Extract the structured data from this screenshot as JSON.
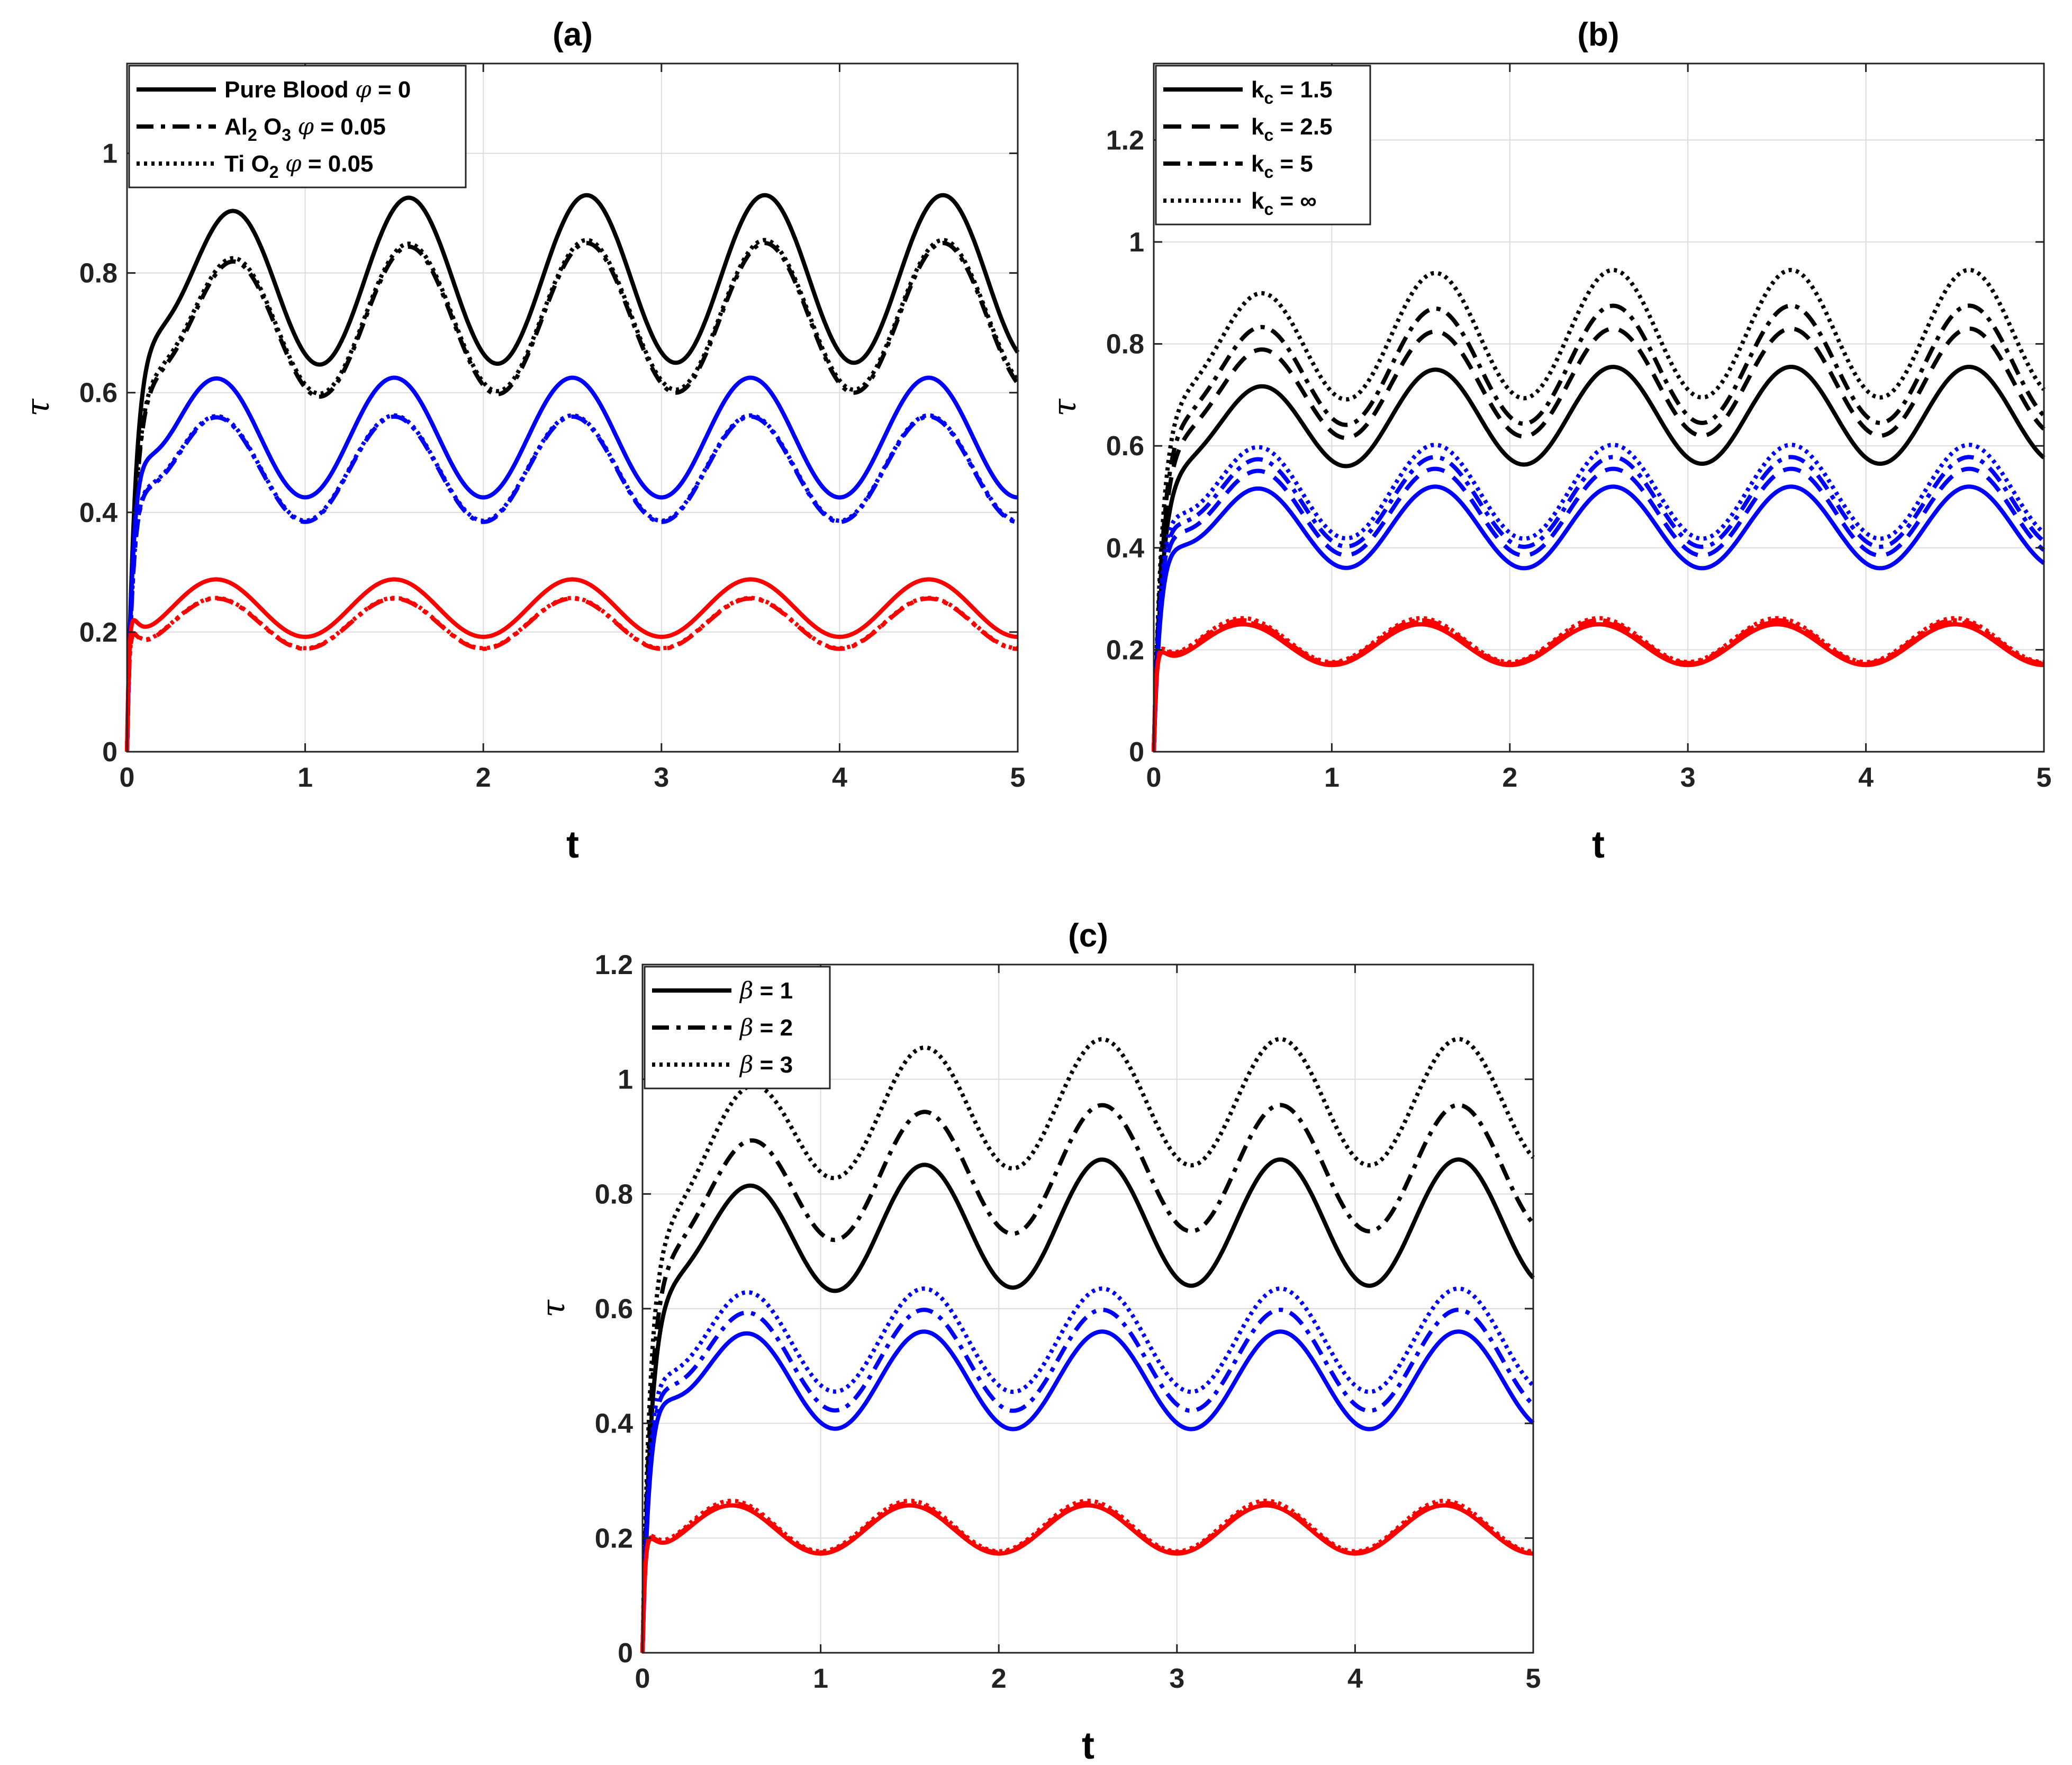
{
  "chart_data": [
    {
      "id": "a",
      "type": "line",
      "title": "(a)",
      "xlabel": "t",
      "ylabel": "τ",
      "xlim": [
        0,
        5
      ],
      "ylim": [
        0,
        1.15
      ],
      "xticks": [
        0,
        1,
        2,
        3,
        4,
        5
      ],
      "yticks": [
        0,
        0.2,
        0.4,
        0.6,
        0.8,
        1
      ],
      "grid": true,
      "legend_position": "top-left",
      "legend": [
        {
          "dash": "solid",
          "parts": [
            [
              "Pure Blood ",
              "n"
            ],
            [
              "φ",
              "i"
            ],
            [
              " = 0",
              "n"
            ]
          ]
        },
        {
          "dash": "dashdot",
          "parts": [
            [
              "Al",
              "n"
            ],
            [
              "2",
              "sub"
            ],
            [
              " O",
              "n"
            ],
            [
              "3",
              "sub"
            ],
            [
              " ",
              "n"
            ],
            [
              "φ",
              "i"
            ],
            [
              " = 0.05",
              "n"
            ]
          ]
        },
        {
          "dash": "dotted",
          "parts": [
            [
              "Ti O",
              "n"
            ],
            [
              "2",
              "sub"
            ],
            [
              " ",
              "n"
            ],
            [
              "φ",
              "i"
            ],
            [
              " = 0.05",
              "n"
            ]
          ]
        }
      ],
      "series": [
        {
          "name": "Pure Blood φ = 0 (black)",
          "color": "#000000",
          "dash": "solid",
          "mean": 0.78,
          "amp": 0.14,
          "peak0": 0.77,
          "tpeak": 0.2,
          "trise": 0.045,
          "drift": 0.01
        },
        {
          "name": "Al2 O3 φ = 0.05 (black)",
          "color": "#000000",
          "dash": "dashdot",
          "mean": 0.71,
          "amp": 0.125,
          "peak0": 0.68,
          "tpeak": 0.2,
          "trise": 0.045,
          "drift": 0.015
        },
        {
          "name": "Ti O2 φ = 0.05 (black)",
          "color": "#000000",
          "dash": "dotted",
          "mean": 0.715,
          "amp": 0.125,
          "peak0": 0.69,
          "tpeak": 0.2,
          "trise": 0.045,
          "drift": 0.015
        },
        {
          "name": "Pure Blood φ = 0 (blue)",
          "color": "#0000ff",
          "dash": "solid",
          "mean": 0.525,
          "amp": 0.1,
          "peak0": 0.58,
          "tpeak": 0.1,
          "trise": 0.03,
          "drift": 0
        },
        {
          "name": "Al2 O3 φ = 0.05 (blue)",
          "color": "#0000ff",
          "dash": "dashdot",
          "mean": 0.472,
          "amp": 0.088,
          "peak0": 0.515,
          "tpeak": 0.1,
          "trise": 0.03,
          "drift": 0
        },
        {
          "name": "Ti O2 φ = 0.05 (blue)",
          "color": "#0000ff",
          "dash": "dotted",
          "mean": 0.474,
          "amp": 0.088,
          "peak0": 0.52,
          "tpeak": 0.1,
          "trise": 0.03,
          "drift": 0
        },
        {
          "name": "Pure Blood φ = 0 (red)",
          "color": "#ff0000",
          "dash": "solid",
          "mean": 0.24,
          "amp": 0.048,
          "peak0": 0.285,
          "tpeak": 0.03,
          "trise": 0.01,
          "drift": 0
        },
        {
          "name": "Al2 O3 φ = 0.05 (red)",
          "color": "#ff0000",
          "dash": "dashdot",
          "mean": 0.214,
          "amp": 0.042,
          "peak0": 0.253,
          "tpeak": 0.03,
          "trise": 0.01,
          "drift": 0
        },
        {
          "name": "Ti O2 φ = 0.05 (red)",
          "color": "#ff0000",
          "dash": "dotted",
          "mean": 0.215,
          "amp": 0.042,
          "peak0": 0.255,
          "tpeak": 0.03,
          "trise": 0.01,
          "drift": 0
        }
      ]
    },
    {
      "id": "b",
      "type": "line",
      "title": "(b)",
      "xlabel": "t",
      "ylabel": "τ",
      "xlim": [
        0,
        5
      ],
      "ylim": [
        0,
        1.35
      ],
      "xticks": [
        0,
        1,
        2,
        3,
        4,
        5
      ],
      "yticks": [
        0,
        0.2,
        0.4,
        0.6,
        0.8,
        1,
        1.2
      ],
      "grid": true,
      "legend_position": "top-left",
      "legend": [
        {
          "dash": "solid",
          "parts": [
            [
              "k",
              "n"
            ],
            [
              "c",
              "sub"
            ],
            [
              " = 1.5",
              "n"
            ]
          ]
        },
        {
          "dash": "dashed",
          "parts": [
            [
              "k",
              "n"
            ],
            [
              "c",
              "sub"
            ],
            [
              " = 2.5",
              "n"
            ]
          ]
        },
        {
          "dash": "dashdot",
          "parts": [
            [
              "k",
              "n"
            ],
            [
              "c",
              "sub"
            ],
            [
              " = 5",
              "n"
            ]
          ]
        },
        {
          "dash": "dotted",
          "parts": [
            [
              "k",
              "n"
            ],
            [
              "c",
              "sub"
            ],
            [
              " = ∞",
              "n"
            ]
          ]
        }
      ],
      "series": [
        {
          "name": "k_c = 1.5 (black)",
          "color": "#000000",
          "dash": "solid",
          "mean": 0.65,
          "amp": 0.095,
          "peak0": 0.58,
          "tpeak": 0.25,
          "trise": 0.05,
          "drift": 0.01
        },
        {
          "name": "k_c = 2.5 (black)",
          "color": "#000000",
          "dash": "dashed",
          "mean": 0.715,
          "amp": 0.105,
          "peak0": 0.64,
          "tpeak": 0.25,
          "trise": 0.05,
          "drift": 0.01
        },
        {
          "name": "k_c = 5 (black)",
          "color": "#000000",
          "dash": "dashdot",
          "mean": 0.75,
          "amp": 0.115,
          "peak0": 0.68,
          "tpeak": 0.25,
          "trise": 0.05,
          "drift": 0.01
        },
        {
          "name": "k_c = ∞ (black)",
          "color": "#000000",
          "dash": "dotted",
          "mean": 0.81,
          "amp": 0.125,
          "peak0": 0.73,
          "tpeak": 0.25,
          "trise": 0.05,
          "drift": 0.01
        },
        {
          "name": "k_c = 1.5 (blue)",
          "color": "#0000ff",
          "dash": "solid",
          "mean": 0.44,
          "amp": 0.08,
          "peak0": 0.46,
          "tpeak": 0.15,
          "trise": 0.035,
          "drift": 0
        },
        {
          "name": "k_c = 2.5 (blue)",
          "color": "#0000ff",
          "dash": "dashed",
          "mean": 0.47,
          "amp": 0.085,
          "peak0": 0.49,
          "tpeak": 0.15,
          "trise": 0.035,
          "drift": 0
        },
        {
          "name": "k_c = 5 (blue)",
          "color": "#0000ff",
          "dash": "dashdot",
          "mean": 0.49,
          "amp": 0.088,
          "peak0": 0.51,
          "tpeak": 0.15,
          "trise": 0.035,
          "drift": 0
        },
        {
          "name": "k_c = ∞ (blue)",
          "color": "#0000ff",
          "dash": "dotted",
          "mean": 0.51,
          "amp": 0.092,
          "peak0": 0.53,
          "tpeak": 0.15,
          "trise": 0.035,
          "drift": 0
        },
        {
          "name": "k_c = 1.5 (red)",
          "color": "#ff0000",
          "dash": "solid",
          "mean": 0.21,
          "amp": 0.04,
          "peak0": 0.245,
          "tpeak": 0.04,
          "trise": 0.012,
          "drift": 0
        },
        {
          "name": "k_c = 2.5 (red)",
          "color": "#ff0000",
          "dash": "dashed",
          "mean": 0.213,
          "amp": 0.041,
          "peak0": 0.248,
          "tpeak": 0.04,
          "trise": 0.012,
          "drift": 0
        },
        {
          "name": "k_c = 5 (red)",
          "color": "#ff0000",
          "dash": "dashdot",
          "mean": 0.216,
          "amp": 0.042,
          "peak0": 0.251,
          "tpeak": 0.04,
          "trise": 0.012,
          "drift": 0
        },
        {
          "name": "k_c = ∞ (red)",
          "color": "#ff0000",
          "dash": "dotted",
          "mean": 0.219,
          "amp": 0.043,
          "peak0": 0.254,
          "tpeak": 0.04,
          "trise": 0.012,
          "drift": 0
        }
      ]
    },
    {
      "id": "c",
      "type": "line",
      "title": "(c)",
      "xlabel": "t",
      "ylabel": "τ",
      "xlim": [
        0,
        5
      ],
      "ylim": [
        0,
        1.2
      ],
      "xticks": [
        0,
        1,
        2,
        3,
        4,
        5
      ],
      "yticks": [
        0,
        0.2,
        0.4,
        0.6,
        0.8,
        1,
        1.2
      ],
      "grid": true,
      "legend_position": "top-left",
      "legend": [
        {
          "dash": "solid",
          "parts": [
            [
              "β",
              "i"
            ],
            [
              " = 1",
              "n"
            ]
          ]
        },
        {
          "dash": "dashdot",
          "parts": [
            [
              "β",
              "i"
            ],
            [
              " = 2",
              "n"
            ]
          ]
        },
        {
          "dash": "dotted",
          "parts": [
            [
              "β",
              "i"
            ],
            [
              " = 3",
              "n"
            ]
          ]
        }
      ],
      "series": [
        {
          "name": "β = 1 (black)",
          "color": "#000000",
          "dash": "solid",
          "mean": 0.73,
          "amp": 0.11,
          "peak0": 0.68,
          "tpeak": 0.25,
          "trise": 0.05,
          "drift": 0.02
        },
        {
          "name": "β = 2 (black)",
          "color": "#000000",
          "dash": "dashdot",
          "mean": 0.82,
          "amp": 0.11,
          "peak0": 0.7,
          "tpeak": 0.25,
          "trise": 0.05,
          "drift": 0.025
        },
        {
          "name": "β = 3 (black)",
          "color": "#000000",
          "dash": "dotted",
          "mean": 0.93,
          "amp": 0.11,
          "peak0": 0.72,
          "tpeak": 0.25,
          "trise": 0.05,
          "drift": 0.03
        },
        {
          "name": "β = 1 (blue)",
          "color": "#0000ff",
          "dash": "solid",
          "mean": 0.475,
          "amp": 0.085,
          "peak0": 0.51,
          "tpeak": 0.15,
          "trise": 0.035,
          "drift": 0
        },
        {
          "name": "β = 2 (blue)",
          "color": "#0000ff",
          "dash": "dashdot",
          "mean": 0.51,
          "amp": 0.088,
          "peak0": 0.52,
          "tpeak": 0.15,
          "trise": 0.035,
          "drift": 0
        },
        {
          "name": "β = 3 (blue)",
          "color": "#0000ff",
          "dash": "dotted",
          "mean": 0.545,
          "amp": 0.09,
          "peak0": 0.53,
          "tpeak": 0.15,
          "trise": 0.035,
          "drift": 0
        },
        {
          "name": "β = 1 (red)",
          "color": "#ff0000",
          "dash": "solid",
          "mean": 0.215,
          "amp": 0.042,
          "peak0": 0.25,
          "tpeak": 0.04,
          "trise": 0.012,
          "drift": 0
        },
        {
          "name": "β = 2 (red)",
          "color": "#ff0000",
          "dash": "dashdot",
          "mean": 0.218,
          "amp": 0.043,
          "peak0": 0.253,
          "tpeak": 0.04,
          "trise": 0.012,
          "drift": 0
        },
        {
          "name": "β = 3 (red)",
          "color": "#ff0000",
          "dash": "dotted",
          "mean": 0.221,
          "amp": 0.044,
          "peak0": 0.256,
          "tpeak": 0.04,
          "trise": 0.012,
          "drift": 0
        }
      ]
    }
  ]
}
